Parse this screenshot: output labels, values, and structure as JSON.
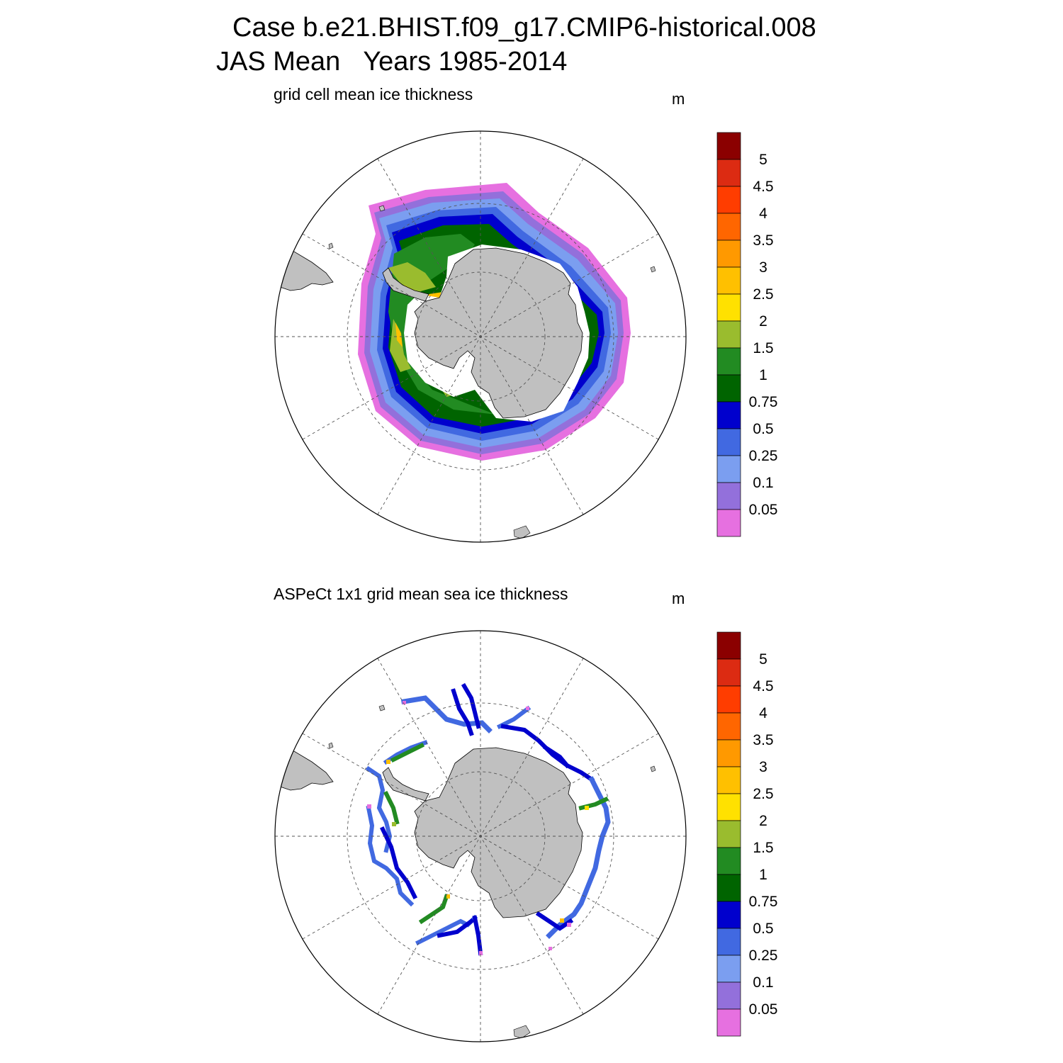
{
  "figure": {
    "case_line": "Case b.e21.BHIST.f09_g17.CMIP6-historical.008",
    "season": "JAS Mean",
    "years": "Years 1985-2014"
  },
  "panels": [
    {
      "title": "grid cell mean ice thickness",
      "unit": "m"
    },
    {
      "title": "ASPeCt 1x1 grid mean sea ice thickness",
      "unit": "m"
    }
  ],
  "colorbar": {
    "labels": [
      "5",
      "4.5",
      "4",
      "3.5",
      "3",
      "2.5",
      "2",
      "1.5",
      "1",
      "0.75",
      "0.5",
      "0.25",
      "0.1",
      "0.05"
    ],
    "colors_top_to_bottom": [
      "#8b0000",
      "#dc2b12",
      "#ff3d00",
      "#ff6600",
      "#ff9900",
      "#ffc000",
      "#ffe100",
      "#9abc2e",
      "#228b22",
      "#006400",
      "#0000cd",
      "#4169e1",
      "#7b9ef0",
      "#9370db",
      "#e670e0"
    ]
  },
  "colors": {
    "land": "#c0c0c0",
    "ocean": "#ffffff",
    "gridline": "#555555"
  }
}
